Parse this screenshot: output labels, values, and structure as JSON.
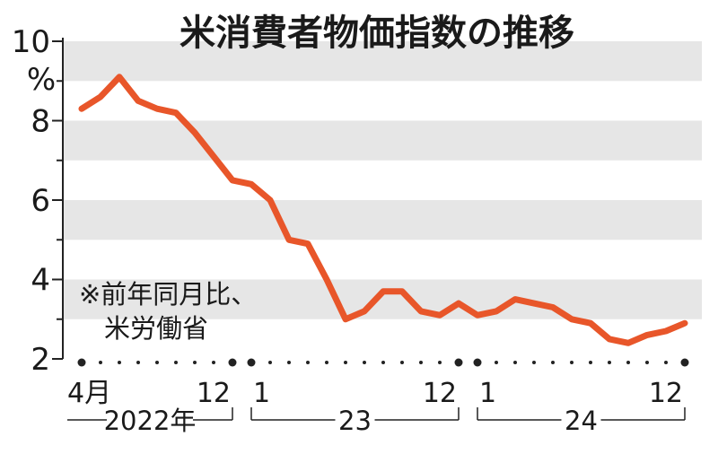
{
  "chart_data": {
    "type": "line",
    "title": "米消費者物価指数の推移",
    "yunit": "%",
    "ylim": [
      2,
      10
    ],
    "yticks": [
      2,
      4,
      6,
      8,
      10
    ],
    "note_lines": [
      "※前年同月比、",
      "米労働省"
    ],
    "x_start": "2022-04",
    "xtick_labels": [
      {
        "label": "4月",
        "month": "2022-04"
      },
      {
        "label": "12",
        "month": "2022-12"
      },
      {
        "label": "1",
        "month": "2023-01"
      },
      {
        "label": "12",
        "month": "2023-12"
      },
      {
        "label": "1",
        "month": "2024-01"
      },
      {
        "label": "12",
        "month": "2024-12"
      }
    ],
    "year_labels": [
      {
        "label": "2022年",
        "from": "2022-04",
        "to": "2022-12"
      },
      {
        "label": "23",
        "from": "2023-01",
        "to": "2023-12"
      },
      {
        "label": "24",
        "from": "2024-01",
        "to": "2024-12"
      }
    ],
    "series": [
      {
        "color": "#e8562a",
        "x": [
          "2022-04",
          "2022-05",
          "2022-06",
          "2022-07",
          "2022-08",
          "2022-09",
          "2022-10",
          "2022-11",
          "2022-12",
          "2023-01",
          "2023-02",
          "2023-03",
          "2023-04",
          "2023-05",
          "2023-06",
          "2023-07",
          "2023-08",
          "2023-09",
          "2023-10",
          "2023-11",
          "2023-12",
          "2024-01",
          "2024-02",
          "2024-03",
          "2024-04",
          "2024-05",
          "2024-06",
          "2024-07",
          "2024-08",
          "2024-09",
          "2024-10",
          "2024-11",
          "2024-12"
        ],
        "values": [
          8.3,
          8.6,
          9.1,
          8.5,
          8.3,
          8.2,
          7.7,
          7.1,
          6.5,
          6.4,
          6.0,
          5.0,
          4.9,
          4.0,
          3.0,
          3.2,
          3.7,
          3.7,
          3.2,
          3.1,
          3.4,
          3.1,
          3.2,
          3.5,
          3.4,
          3.3,
          3.0,
          2.9,
          2.5,
          2.4,
          2.6,
          2.7,
          2.9
        ]
      }
    ],
    "bands": "alternating gray bands every 1 point",
    "gridline_color": "#e5e5e5"
  }
}
